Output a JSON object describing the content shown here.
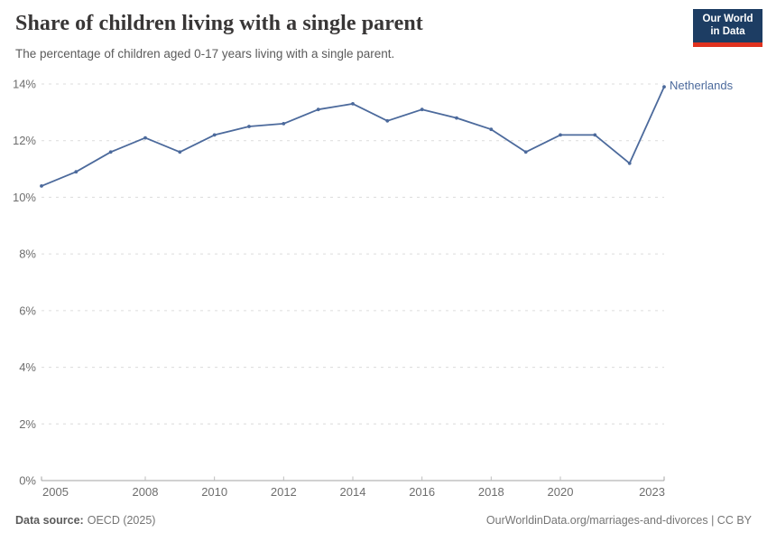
{
  "header": {
    "title": "Share of children living with a single parent",
    "subtitle": "The percentage of children aged 0-17 years living with a single parent.",
    "logo_line1": "Our World",
    "logo_line2": "in Data"
  },
  "chart_data": {
    "type": "line",
    "title": "Share of children living with a single parent",
    "xlabel": "",
    "ylabel": "",
    "x": [
      2005,
      2006,
      2007,
      2008,
      2009,
      2010,
      2011,
      2012,
      2013,
      2014,
      2015,
      2016,
      2017,
      2018,
      2019,
      2020,
      2021,
      2022,
      2023
    ],
    "series": [
      {
        "name": "Netherlands",
        "color": "#4c6a9c",
        "values": [
          10.4,
          10.9,
          11.6,
          12.1,
          11.6,
          12.2,
          12.5,
          12.6,
          13.1,
          13.3,
          12.7,
          13.1,
          12.8,
          12.4,
          11.6,
          12.2,
          12.2,
          11.2,
          13.9
        ]
      }
    ],
    "ylim": [
      0,
      14
    ],
    "yticks": [
      0,
      2,
      4,
      6,
      8,
      10,
      12,
      14
    ],
    "ytick_suffix": "%",
    "xticks": [
      2005,
      2008,
      2010,
      2012,
      2014,
      2016,
      2018,
      2020,
      2023
    ],
    "grid": "horizontal-dashed",
    "legend_position": "end-of-line-label"
  },
  "footer": {
    "datasource_label": "Data source:",
    "datasource_value": "OECD (2025)",
    "credit": "OurWorldinData.org/marriages-and-divorces | CC BY"
  },
  "colors": {
    "line": "#4c6a9c",
    "title_text": "#383636",
    "subtitle_text": "#5b5b5b",
    "tick_label": "#6e6e6e",
    "gridline": "#dcdcdc",
    "axis_line": "#a3a3a3",
    "axis_tick": "#bdbdbd",
    "footer_text": "#757575",
    "logo_background": "#1d3d63",
    "logo_accent": "#e0321f"
  }
}
